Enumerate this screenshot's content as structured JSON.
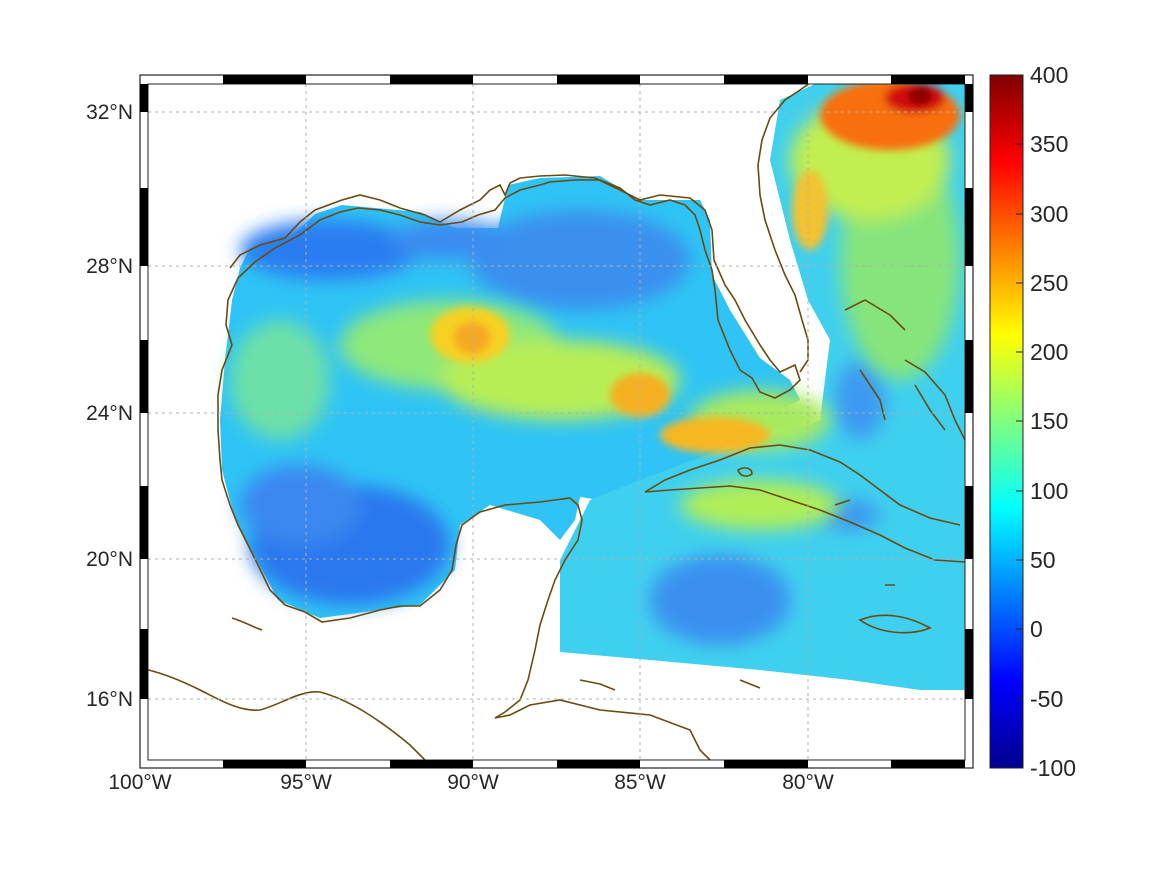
{
  "map": {
    "longitude_labels": [
      "100°W",
      "95°W",
      "90°W",
      "85°W",
      "80°W"
    ],
    "latitude_labels": [
      "32°N",
      "28°N",
      "24°N",
      "20°N",
      "16°N"
    ],
    "lon_range": [
      -100,
      -75
    ],
    "lat_range": [
      14.5,
      33
    ],
    "grid": true,
    "coastline_color": "#6b4a10"
  },
  "colorbar": {
    "tick_labels": [
      "400",
      "350",
      "300",
      "250",
      "200",
      "150",
      "100",
      "50",
      "0",
      "-50",
      "-100"
    ],
    "range": [
      -100,
      400
    ],
    "colormap": "jet"
  }
}
